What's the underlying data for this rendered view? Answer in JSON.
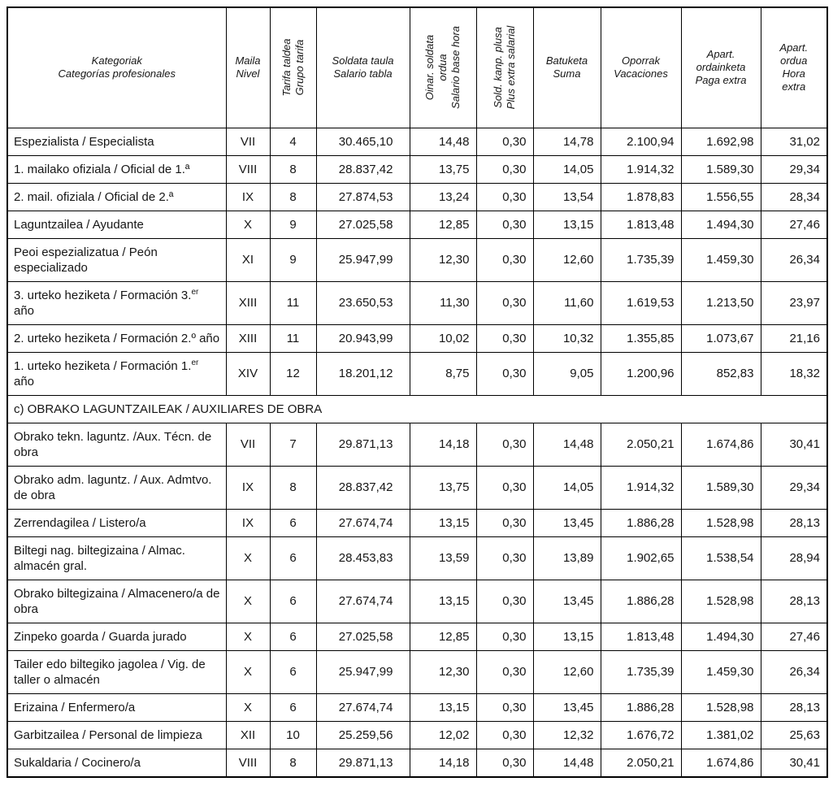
{
  "table": {
    "header": {
      "columns": [
        {
          "id": "category",
          "eu": "Kategoriak",
          "es": "Categorías profesionales",
          "rotated": false
        },
        {
          "id": "level",
          "eu": "Maila",
          "es": "Nivel",
          "rotated": false
        },
        {
          "id": "tariff_group",
          "eu": "Tarifa taldea",
          "es": "Grupo tarifa",
          "rotated": true
        },
        {
          "id": "salary_table",
          "eu": "Soldata taula",
          "es": "Salario tabla",
          "rotated": false
        },
        {
          "id": "base_hour",
          "eu": "Oinar. soldata\nordua",
          "es": "Salario base hora",
          "rotated": true
        },
        {
          "id": "extra_plus",
          "eu": "Sold. kanp. plusa",
          "es": "Plus extra salarial",
          "rotated": true
        },
        {
          "id": "sum",
          "eu": "Batuketa",
          "es": "Suma",
          "rotated": false
        },
        {
          "id": "vacations",
          "eu": "Oporrak",
          "es": "Vacaciones",
          "rotated": false
        },
        {
          "id": "extra_pay",
          "eu": "Apart.\nordainketa",
          "es": "Paga extra",
          "rotated": false
        },
        {
          "id": "extra_hour",
          "eu": "Apart.\nordua",
          "es": "Hora\nextra",
          "rotated": false
        }
      ]
    },
    "rows": [
      {
        "name": "Espezialista / Especialista",
        "level": "VII",
        "group": "4",
        "values": [
          "30.465,10",
          "14,48",
          "0,30",
          "14,78",
          "2.100,94",
          "1.692,98",
          "31,02"
        ]
      },
      {
        "name": "1. mailako ofiziala / Oficial de 1.ª",
        "level": "VIII",
        "group": "8",
        "values": [
          "28.837,42",
          "13,75",
          "0,30",
          "14,05",
          "1.914,32",
          "1.589,30",
          "29,34"
        ]
      },
      {
        "name": "2. mail. ofiziala / Oficial de 2.ª",
        "level": "IX",
        "group": "8",
        "values": [
          "27.874,53",
          "13,24",
          "0,30",
          "13,54",
          "1.878,83",
          "1.556,55",
          "28,34"
        ]
      },
      {
        "name": "Laguntzailea / Ayudante",
        "level": "X",
        "group": "9",
        "values": [
          "27.025,58",
          "12,85",
          "0,30",
          "13,15",
          "1.813,48",
          "1.494,30",
          "27,46"
        ]
      },
      {
        "name": "Peoi espezializatua / Peón especializado",
        "level": "XI",
        "group": "9",
        "values": [
          "25.947,99",
          "12,30",
          "0,30",
          "12,60",
          "1.735,39",
          "1.459,30",
          "26,34"
        ]
      },
      {
        "name": "3. urteko heziketa / Formación 3.^{er} año",
        "level": "XIII",
        "group": "11",
        "values": [
          "23.650,53",
          "11,30",
          "0,30",
          "11,60",
          "1.619,53",
          "1.213,50",
          "23,97"
        ]
      },
      {
        "name": "2. urteko heziketa / Formación 2.º año",
        "level": "XIII",
        "group": "11",
        "values": [
          "20.943,99",
          "10,02",
          "0,30",
          "10,32",
          "1.355,85",
          "1.073,67",
          "21,16"
        ]
      },
      {
        "name": "1. urteko heziketa / Formación 1.^{er} año",
        "level": "XIV",
        "group": "12",
        "values": [
          "18.201,12",
          "8,75",
          "0,30",
          "9,05",
          "1.200,96",
          "852,83",
          "18,32"
        ]
      },
      {
        "section": "c) OBRAKO LAGUNTZAILEAK / AUXILIARES DE OBRA"
      },
      {
        "name": "Obrako tekn. laguntz. /Aux. Técn. de obra",
        "level": "VII",
        "group": "7",
        "values": [
          "29.871,13",
          "14,18",
          "0,30",
          "14,48",
          "2.050,21",
          "1.674,86",
          "30,41"
        ]
      },
      {
        "name": "Obrako adm. laguntz. / Aux. Admtvo. de obra",
        "level": "IX",
        "group": "8",
        "values": [
          "28.837,42",
          "13,75",
          "0,30",
          "14,05",
          "1.914,32",
          "1.589,30",
          "29,34"
        ]
      },
      {
        "name": "Zerrendagilea / Listero/a",
        "level": "IX",
        "group": "6",
        "values": [
          "27.674,74",
          "13,15",
          "0,30",
          "13,45",
          "1.886,28",
          "1.528,98",
          "28,13"
        ]
      },
      {
        "name": "Biltegi nag. biltegizaina / Almac. almacén gral.",
        "level": "X",
        "group": "6",
        "values": [
          "28.453,83",
          "13,59",
          "0,30",
          "13,89",
          "1.902,65",
          "1.538,54",
          "28,94"
        ]
      },
      {
        "name": "Obrako biltegizaina / Almacenero/a de obra",
        "level": "X",
        "group": "6",
        "values": [
          "27.674,74",
          "13,15",
          "0,30",
          "13,45",
          "1.886,28",
          "1.528,98",
          "28,13"
        ]
      },
      {
        "name": "Zinpeko goarda / Guarda jurado",
        "level": "X",
        "group": "6",
        "values": [
          "27.025,58",
          "12,85",
          "0,30",
          "13,15",
          "1.813,48",
          "1.494,30",
          "27,46"
        ]
      },
      {
        "name": "Tailer edo biltegiko jagolea / Vig. de taller o almacén",
        "level": "X",
        "group": "6",
        "values": [
          "25.947,99",
          "12,30",
          "0,30",
          "12,60",
          "1.735,39",
          "1.459,30",
          "26,34"
        ]
      },
      {
        "name": "Erizaina / Enfermero/a",
        "level": "X",
        "group": "6",
        "values": [
          "27.674,74",
          "13,15",
          "0,30",
          "13,45",
          "1.886,28",
          "1.528,98",
          "28,13"
        ]
      },
      {
        "name": "Garbitzailea / Personal de limpieza",
        "level": "XII",
        "group": "10",
        "values": [
          "25.259,56",
          "12,02",
          "0,30",
          "12,32",
          "1.676,72",
          "1.381,02",
          "25,63"
        ]
      },
      {
        "name": "Sukaldaria / Cocinero/a",
        "level": "VIII",
        "group": "8",
        "values": [
          "29.871,13",
          "14,18",
          "0,30",
          "14,48",
          "2.050,21",
          "1.674,86",
          "30,41"
        ]
      }
    ]
  }
}
